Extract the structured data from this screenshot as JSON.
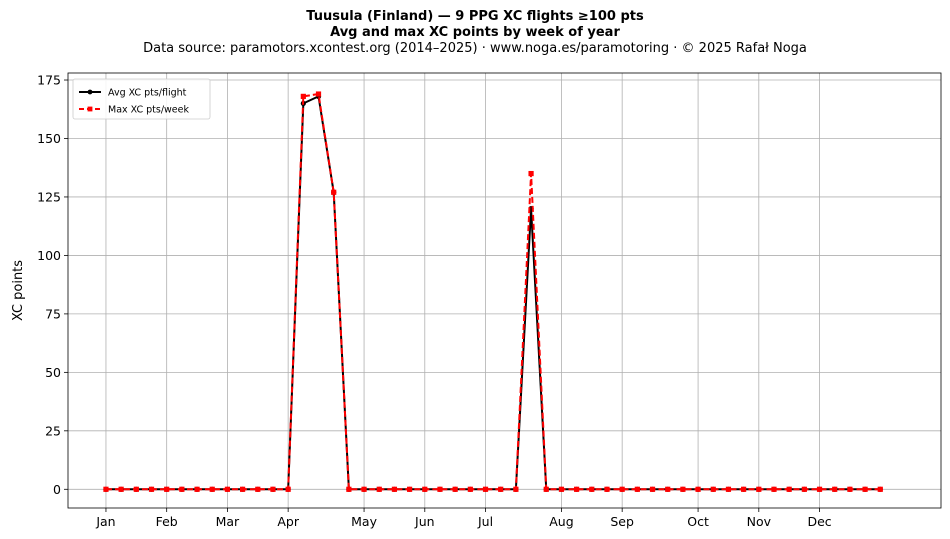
{
  "header": {
    "title_line1": "Tuusula (Finland)  —  9 PPG XC flights ≥100 pts",
    "title_line2": "Avg and max XC points by week of year",
    "subtitle": "Data source: paramotors.xcontest.org (2014–2025)  ·  www.noga.es/paramotoring  ·  © 2025 Rafał Noga"
  },
  "chart_data": {
    "type": "line",
    "title": "Tuusula (Finland)  —  9 PPG XC flights ≥100 pts",
    "subtitle": "Avg and max XC points by week of year",
    "xlabel": "",
    "ylabel": "XC points",
    "x_unit": "week of year",
    "x": [
      1,
      2,
      3,
      4,
      5,
      6,
      7,
      8,
      9,
      10,
      11,
      12,
      13,
      14,
      15,
      16,
      17,
      18,
      19,
      20,
      21,
      22,
      23,
      24,
      25,
      26,
      27,
      28,
      29,
      30,
      31,
      32,
      33,
      34,
      35,
      36,
      37,
      38,
      39,
      40,
      41,
      42,
      43,
      44,
      45,
      46,
      47,
      48,
      49,
      50,
      51,
      52
    ],
    "xlim": [
      -1.5,
      56.0
    ],
    "ylim": [
      -8,
      178
    ],
    "x_ticks": [
      {
        "label": "Jan",
        "week": 1.0
      },
      {
        "label": "Feb",
        "week": 5.0
      },
      {
        "label": "Mar",
        "week": 9.0
      },
      {
        "label": "Apr",
        "week": 13.0
      },
      {
        "label": "May",
        "week": 18.0
      },
      {
        "label": "Jun",
        "week": 22.0
      },
      {
        "label": "Jul",
        "week": 26.0
      },
      {
        "label": "Aug",
        "week": 31.0
      },
      {
        "label": "Sep",
        "week": 35.0
      },
      {
        "label": "Oct",
        "week": 40.0
      },
      {
        "label": "Nov",
        "week": 44.0
      },
      {
        "label": "Dec",
        "week": 48.0
      }
    ],
    "y_ticks": [
      0,
      25,
      50,
      75,
      100,
      125,
      150,
      175
    ],
    "grid": true,
    "legend_position": "top-left",
    "series": [
      {
        "name": "Avg XC pts/flight",
        "color": "#000000",
        "style": "solid",
        "marker": "circle",
        "values": [
          0,
          0,
          0,
          0,
          0,
          0,
          0,
          0,
          0,
          0,
          0,
          0,
          0,
          165,
          168,
          127,
          0,
          0,
          0,
          0,
          0,
          0,
          0,
          0,
          0,
          0,
          0,
          0,
          120,
          0,
          0,
          0,
          0,
          0,
          0,
          0,
          0,
          0,
          0,
          0,
          0,
          0,
          0,
          0,
          0,
          0,
          0,
          0,
          0,
          0,
          0,
          0
        ]
      },
      {
        "name": "Max XC pts/week",
        "color": "#ff0000",
        "style": "dashed",
        "marker": "square",
        "values": [
          0,
          0,
          0,
          0,
          0,
          0,
          0,
          0,
          0,
          0,
          0,
          0,
          0,
          168,
          169,
          127,
          0,
          0,
          0,
          0,
          0,
          0,
          0,
          0,
          0,
          0,
          0,
          0,
          135,
          0,
          0,
          0,
          0,
          0,
          0,
          0,
          0,
          0,
          0,
          0,
          0,
          0,
          0,
          0,
          0,
          0,
          0,
          0,
          0,
          0,
          0,
          0
        ]
      }
    ]
  }
}
